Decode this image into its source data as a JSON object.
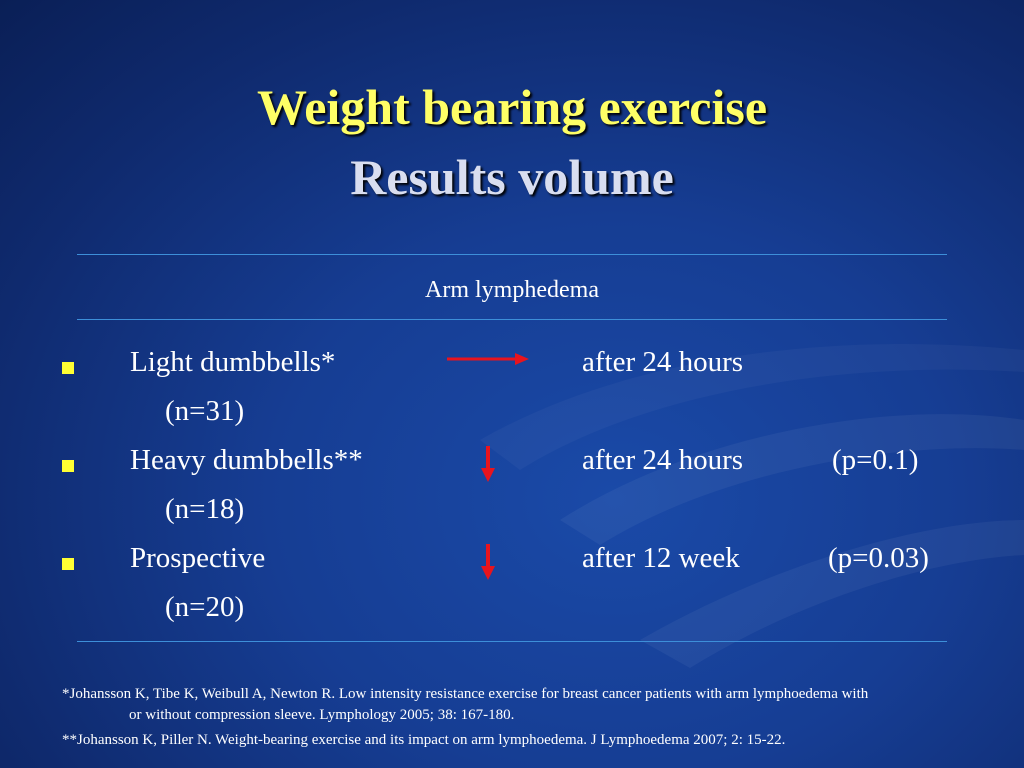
{
  "slide": {
    "title_line1": "Weight bearing exercise",
    "title_line2": "Results volume",
    "subheading": "Arm lymphedema"
  },
  "rows": [
    {
      "label": "Light dumbbells*",
      "n": "(n=31)",
      "arrow": "right-arrow",
      "time": "after 24 hours",
      "p": ""
    },
    {
      "label": "Heavy dumbbells**",
      "n": "(n=18)",
      "arrow": "down-arrow",
      "time": "after 24 hours",
      "p": "(p=0.1)"
    },
    {
      "label": "Prospective",
      "n": "(n=20)",
      "arrow": "down-arrow",
      "time": "after 12 week",
      "p": "(p=0.03)"
    }
  ],
  "references": {
    "ref1_line1": "*Johansson K, Tibe K, Weibull A, Newton R. Low intensity resistance exercise for breast cancer patients with arm lymphoedema with",
    "ref1_line2": "or without compression sleeve. Lymphology 2005; 38: 167-180.",
    "ref2": "**Johansson K, Piller N. Weight-bearing exercise and its impact on arm lymphoedema. J Lymphoedema 2007; 2: 15-22."
  },
  "colors": {
    "title": "#ffff66",
    "bullet": "#ffff33",
    "arrow": "#e8141e",
    "rule": "#3d8fd9"
  }
}
